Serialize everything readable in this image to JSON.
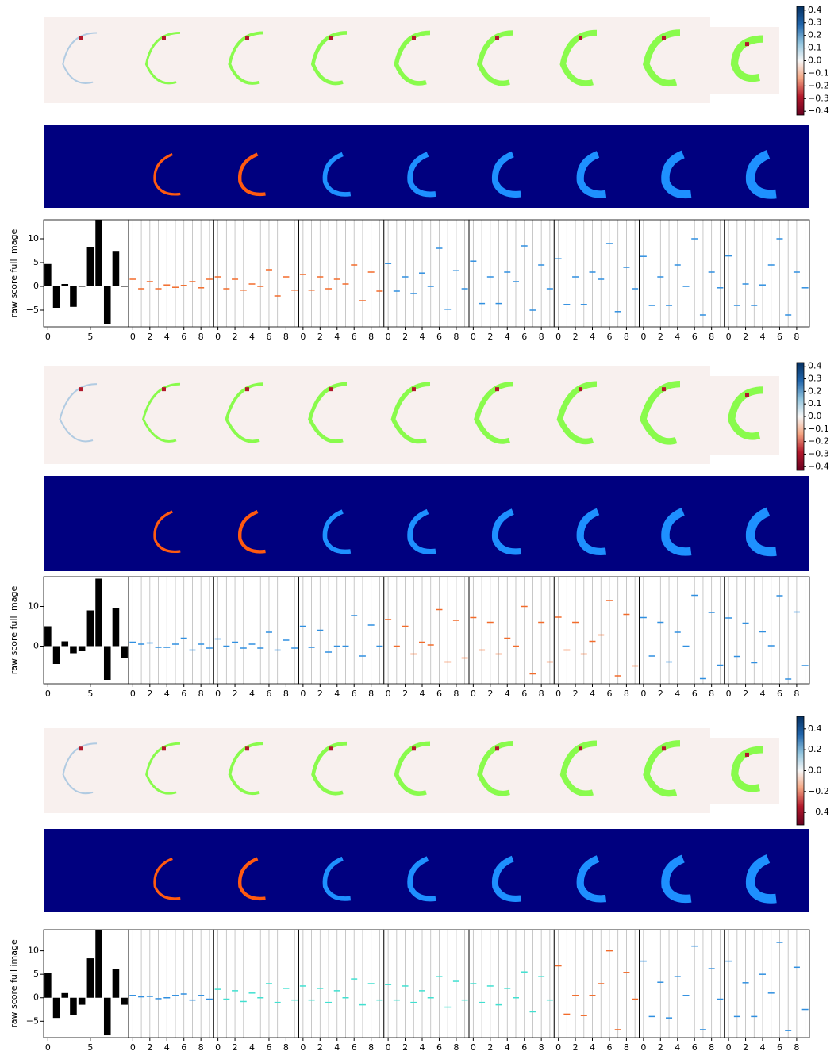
{
  "chart_data": [
    {
      "type": "bar",
      "ylabel": "raw score full image",
      "x": [
        0,
        1,
        2,
        3,
        4,
        5,
        6,
        7,
        8,
        9
      ],
      "values": [
        4.7,
        -4.5,
        0.5,
        -4.3,
        0,
        8.3,
        14,
        -8,
        7.3,
        0
      ],
      "color": "#000000",
      "xlim": [
        -0.5,
        9.5
      ],
      "xticks": [
        0,
        5
      ],
      "panel_xticks": [
        0,
        2,
        4,
        6,
        8
      ],
      "ylim": [
        -8.5,
        14
      ],
      "yticks": [
        {
          "value": -5,
          "label": "−5"
        },
        0,
        5,
        10
      ],
      "panels": [
        {
          "color": "#f26b2a",
          "values": [
            1.5,
            -0.5,
            1,
            -0.5,
            0.3,
            -0.2,
            0.2,
            1,
            -0.3,
            1.5
          ]
        },
        {
          "color": "#f26b2a",
          "values": [
            2,
            -0.5,
            1.5,
            -0.8,
            0.5,
            0,
            3.5,
            -2,
            2,
            -0.8
          ]
        },
        {
          "color": "#f26b2a",
          "values": [
            2.5,
            -0.8,
            2,
            -0.5,
            1.5,
            0.5,
            4.5,
            -3,
            3,
            -1
          ]
        },
        {
          "color": "#2f8fe0",
          "values": [
            4.8,
            -1,
            2,
            -1.5,
            2.8,
            0,
            8,
            -4.8,
            3.3,
            -0.5
          ]
        },
        {
          "color": "#2f8fe0",
          "values": [
            5.3,
            -3.6,
            2,
            -3.6,
            3,
            1,
            8.5,
            -5,
            4.5,
            -0.5
          ]
        },
        {
          "color": "#2f8fe0",
          "values": [
            5.8,
            -3.8,
            2,
            -3.8,
            3,
            1.5,
            9,
            -5.3,
            4,
            -0.5
          ]
        },
        {
          "color": "#2f8fe0",
          "values": [
            6.3,
            -4,
            2,
            -4,
            4.5,
            0,
            10,
            -6,
            3,
            -0.3
          ]
        },
        {
          "color": "#2f8fe0",
          "values": [
            6.4,
            -4,
            0.5,
            -4,
            0.3,
            4.5,
            10,
            -6,
            3,
            -0.3
          ]
        }
      ],
      "colorbar": {
        "ylim": [
          -0.43,
          0.43
        ],
        "yticks": [
          {
            "value": -0.4,
            "label": "−0.4"
          },
          {
            "value": -0.3,
            "label": "−0.3"
          },
          {
            "value": -0.2,
            "label": "−0.2"
          },
          {
            "value": -0.1,
            "label": "−0.1"
          },
          {
            "value": 0,
            "label": "0.0"
          },
          0.1,
          0.2,
          0.3,
          0.4
        ]
      }
    },
    {
      "type": "bar",
      "ylabel": "raw score full image",
      "x": [
        0,
        1,
        2,
        3,
        4,
        5,
        6,
        7,
        8,
        9
      ],
      "values": [
        5,
        -4.5,
        1.2,
        -1.8,
        -1.3,
        9,
        17,
        -8.5,
        9.5,
        -3
      ],
      "color": "#000000",
      "xlim": [
        -0.5,
        9.5
      ],
      "xticks": [
        0,
        5
      ],
      "panel_xticks": [
        0,
        2,
        4,
        6,
        8
      ],
      "ylim": [
        -9.5,
        17.5
      ],
      "yticks": [
        0,
        10
      ],
      "panels": [
        {
          "color": "#2f8fe0",
          "values": [
            1,
            0.5,
            0.8,
            -0.3,
            -0.3,
            0.5,
            2,
            -1,
            0.5,
            -0.5
          ]
        },
        {
          "color": "#2f8fe0",
          "values": [
            1.8,
            0,
            1,
            -0.5,
            0.5,
            -0.5,
            3.5,
            -1,
            1.5,
            -0.5
          ]
        },
        {
          "color": "#2f8fe0",
          "values": [
            5,
            -0.3,
            4,
            -1.5,
            0,
            0,
            7.7,
            -2.5,
            5.3,
            0
          ]
        },
        {
          "color": "#f26b2a",
          "values": [
            6.7,
            0,
            5,
            -2,
            1,
            0.3,
            9.2,
            -4,
            6.5,
            -3
          ]
        },
        {
          "color": "#f26b2a",
          "values": [
            7.2,
            -1,
            6,
            -2,
            2,
            0,
            10,
            -7,
            6,
            -4
          ]
        },
        {
          "color": "#f26b2a",
          "values": [
            7.3,
            -1,
            6,
            -2,
            1.2,
            2.8,
            11.5,
            -7.5,
            8,
            -5
          ]
        },
        {
          "color": "#2f8fe0",
          "values": [
            7.2,
            -2.5,
            6,
            -4,
            3.5,
            0,
            12.8,
            -8.2,
            8.5,
            -4.8
          ]
        },
        {
          "color": "#2f8fe0",
          "values": [
            7.1,
            -2.6,
            5.8,
            -4.2,
            3.6,
            0.1,
            12.7,
            -8.3,
            8.6,
            -4.9
          ]
        }
      ],
      "colorbar": {
        "ylim": [
          -0.43,
          0.43
        ],
        "yticks": [
          {
            "value": -0.4,
            "label": "−0.4"
          },
          {
            "value": -0.3,
            "label": "−0.3"
          },
          {
            "value": -0.2,
            "label": "−0.2"
          },
          {
            "value": -0.1,
            "label": "−0.1"
          },
          {
            "value": 0,
            "label": "0.0"
          },
          0.1,
          0.2,
          0.3,
          0.4
        ]
      }
    },
    {
      "type": "bar",
      "ylabel": "raw score full image",
      "x": [
        0,
        1,
        2,
        3,
        4,
        5,
        6,
        7,
        8,
        9
      ],
      "values": [
        5.3,
        -4.3,
        1,
        -3.6,
        -1.5,
        8.4,
        14.5,
        -8,
        6.1,
        -1.5
      ],
      "color": "#000000",
      "xlim": [
        -0.5,
        9.5
      ],
      "xticks": [
        0,
        5
      ],
      "panel_xticks": [
        0,
        2,
        4,
        6,
        8
      ],
      "ylim": [
        -8.5,
        14.5
      ],
      "yticks": [
        {
          "value": -5,
          "label": "−5"
        },
        0,
        5,
        10
      ],
      "panels": [
        {
          "color": "#2f8fe0",
          "values": [
            0.5,
            0.2,
            0.3,
            -0.2,
            0,
            0.5,
            0.8,
            -0.5,
            0.5,
            -0.3
          ]
        },
        {
          "color": "#40e0d0",
          "values": [
            1.8,
            -0.3,
            1.5,
            -0.8,
            1,
            0,
            3,
            -1,
            2,
            -0.5
          ]
        },
        {
          "color": "#40e0d0",
          "values": [
            2.5,
            -0.5,
            2,
            -1,
            1.5,
            0,
            4,
            -1.5,
            3,
            -0.5
          ]
        },
        {
          "color": "#40e0d0",
          "values": [
            2.8,
            -0.5,
            2.5,
            -1,
            1.5,
            0,
            4.5,
            -2,
            3.5,
            -0.5
          ]
        },
        {
          "color": "#40e0d0",
          "values": [
            3,
            -1,
            2.5,
            -1.5,
            2,
            0,
            5.5,
            -3,
            4.5,
            -0.5
          ]
        },
        {
          "color": "#f26b2a",
          "values": [
            6.8,
            -3.5,
            0.5,
            -3.8,
            0.5,
            3,
            10,
            -6.8,
            5.4,
            -0.3
          ]
        },
        {
          "color": "#2f8fe0",
          "values": [
            7.8,
            -4,
            3.3,
            -4.3,
            4.5,
            0.5,
            11,
            -6.8,
            6.2,
            -0.3
          ]
        },
        {
          "color": "#2f8fe0",
          "values": [
            7.8,
            -4,
            3.2,
            -4,
            5,
            1,
            11.8,
            -7,
            6.5,
            -2.5
          ]
        }
      ],
      "colorbar": {
        "ylim": [
          -0.52,
          0.52
        ],
        "yticks": [
          {
            "value": -0.4,
            "label": "−0.4"
          },
          {
            "value": -0.2,
            "label": "−0.2"
          },
          {
            "value": 0,
            "label": "0.0"
          },
          0.2,
          0.4
        ]
      }
    }
  ]
}
